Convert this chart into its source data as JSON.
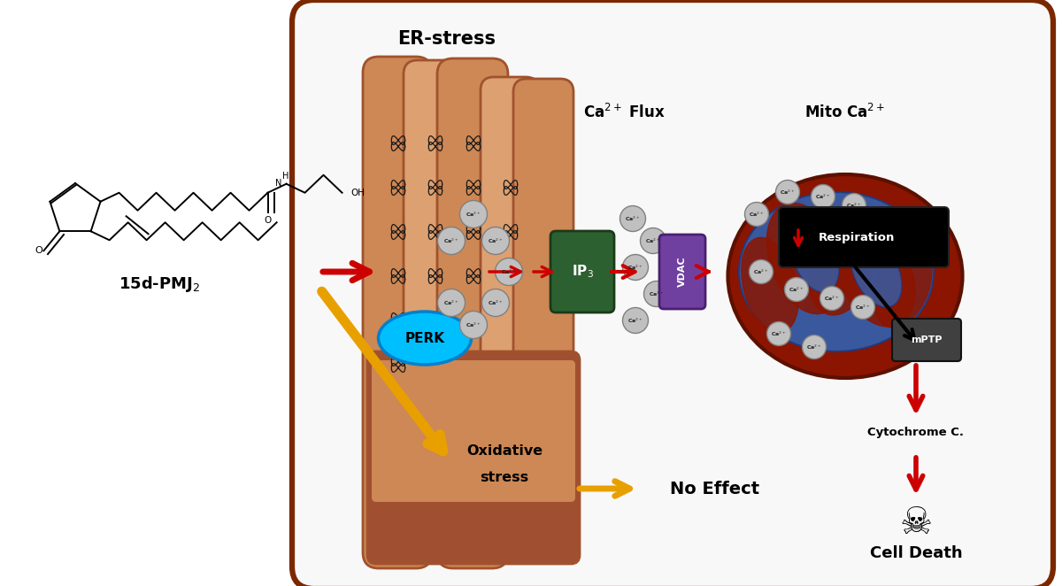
{
  "bg_color": "#ffffff",
  "cell_border_color": "#7B2800",
  "er_fill_color": "#CD8855",
  "er_dark_color": "#A0522D",
  "er_light_color": "#DDA070",
  "mito_outer_color": "#8B1500",
  "mito_mid_color": "#6B0F00",
  "cristae_color": "#3060B0",
  "title_er": "ER-stress",
  "label_ca_flux": "Ca$^{2+}$ Flux",
  "label_mito_ca": "Mito Ca$^{2+}$",
  "label_perk": "PERK",
  "label_ip3": "IP$_3$",
  "label_vdac": "VDAC",
  "label_mptp": "mPTP",
  "label_cytochrome": "Cytochrome C.",
  "label_cell_death": "Cell Death",
  "label_oxidative_1": "Oxidative",
  "label_oxidative_2": "stress",
  "label_no_effect": "No Effect",
  "label_compound": "15d-PMJ$_2$",
  "arrow_red": "#CC0000",
  "arrow_gold": "#E8A000",
  "perk_color": "#00BFFF",
  "perk_edge": "#0080CC",
  "ip3_color": "#2D6030",
  "ip3_edge": "#1A3A18",
  "vdac_color": "#7040A0",
  "vdac_edge": "#4A2070",
  "respiration_bg": "#000000",
  "respiration_red": "#CC0000",
  "mptp_color": "#404040",
  "ca_fill": "#C0C0C0",
  "ca_edge": "#808080"
}
